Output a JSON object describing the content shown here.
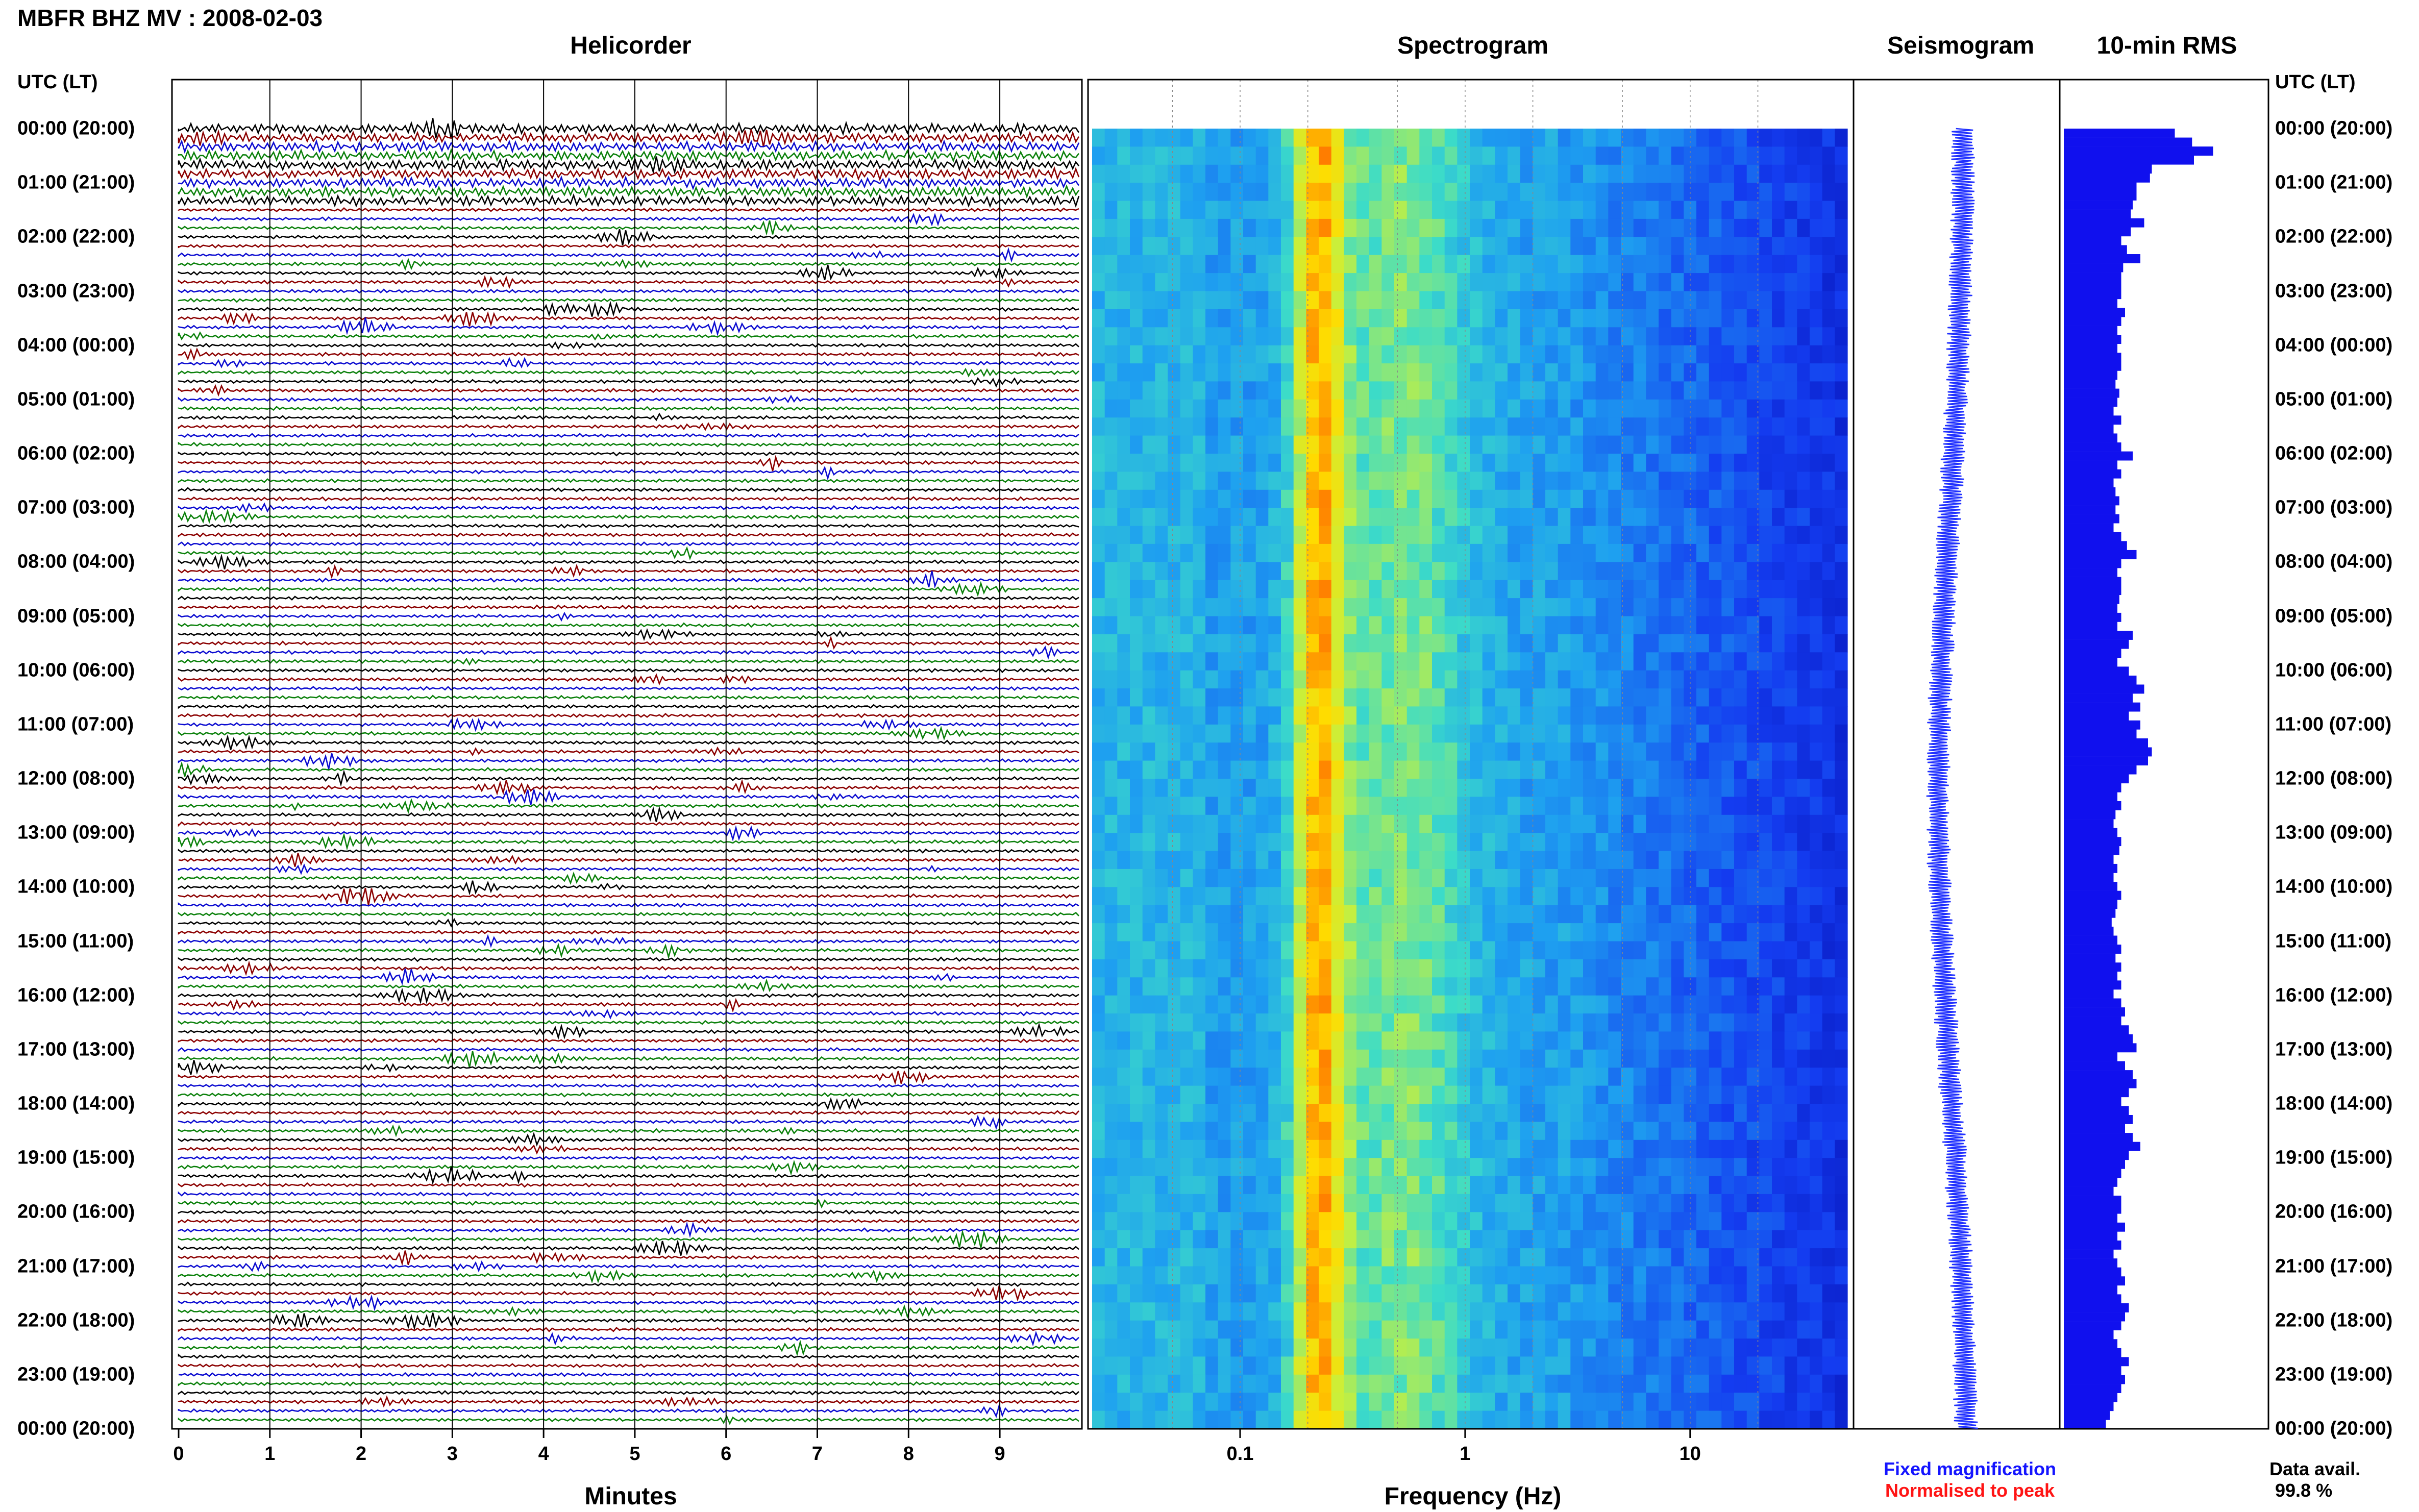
{
  "header": {
    "title": "MBFR BHZ MV : 2008-02-03"
  },
  "panels": {
    "helicorder": "Helicorder",
    "spectrogram": "Spectrogram",
    "seismogram": "Seismogram",
    "rms": "10-min RMS"
  },
  "time_axis": {
    "heading_left": "UTC (LT)",
    "heading_right": "UTC (LT)",
    "labels": [
      "00:00 (20:00)",
      "01:00 (21:00)",
      "02:00 (22:00)",
      "03:00 (23:00)",
      "04:00 (00:00)",
      "05:00 (01:00)",
      "06:00 (02:00)",
      "07:00 (03:00)",
      "08:00 (04:00)",
      "09:00 (05:00)",
      "10:00 (06:00)",
      "11:00 (07:00)",
      "12:00 (08:00)",
      "13:00 (09:00)",
      "14:00 (10:00)",
      "15:00 (11:00)",
      "16:00 (12:00)",
      "17:00 (13:00)",
      "18:00 (14:00)",
      "19:00 (15:00)",
      "20:00 (16:00)",
      "21:00 (17:00)",
      "22:00 (18:00)",
      "23:00 (19:00)",
      "00:00 (20:00)"
    ]
  },
  "helicorder_axis": {
    "title": "Minutes",
    "ticks": [
      "0",
      "1",
      "2",
      "3",
      "4",
      "5",
      "6",
      "7",
      "8",
      "9"
    ]
  },
  "spectrogram_axis": {
    "title": "Frequency (Hz)",
    "ticks": [
      "0.1",
      "1",
      "10"
    ]
  },
  "legend": {
    "fixed": "Fixed magnification",
    "normalised": "Normalised to peak",
    "fixed_color": "#1414ff",
    "normalised_color": "#ff1414"
  },
  "availability": {
    "label": "Data avail.",
    "value": "99.8 %"
  },
  "chart_data": {
    "type": "bar",
    "title": "10-min RMS",
    "orientation": "horizontal",
    "interval_minutes": 10,
    "start_time": "00:00",
    "color": "#1010ee",
    "values": [
      58,
      67,
      78,
      68,
      46,
      45,
      38,
      38,
      36,
      35,
      42,
      35,
      30,
      33,
      40,
      31,
      30,
      30,
      30,
      28,
      32,
      30,
      28,
      30,
      28,
      30,
      30,
      28,
      27,
      29,
      28,
      26,
      30,
      26,
      28,
      30,
      36,
      28,
      30,
      26,
      27,
      29,
      27,
      29,
      26,
      30,
      33,
      38,
      30,
      28,
      30,
      30,
      29,
      28,
      30,
      28,
      36,
      34,
      30,
      28,
      34,
      38,
      42,
      36,
      40,
      34,
      40,
      38,
      44,
      46,
      44,
      38,
      34,
      30,
      28,
      30,
      27,
      26,
      28,
      30,
      29,
      26,
      28,
      26,
      28,
      30,
      28,
      27,
      25,
      26,
      28,
      30,
      27,
      30,
      28,
      30,
      26,
      30,
      32,
      30,
      34,
      36,
      38,
      28,
      32,
      36,
      38,
      34,
      30,
      34,
      36,
      32,
      36,
      40,
      34,
      32,
      30,
      28,
      26,
      30,
      30,
      28,
      32,
      28,
      30,
      26,
      28,
      30,
      32,
      28,
      30,
      34,
      32,
      30,
      26,
      28,
      30,
      34,
      30,
      32,
      30,
      28,
      26,
      24,
      22
    ]
  },
  "colors": {
    "trace_cycle": [
      "#000000",
      "#8b0000",
      "#0b0bd0",
      "#0a800a"
    ],
    "seismogram": "#2030ff"
  }
}
